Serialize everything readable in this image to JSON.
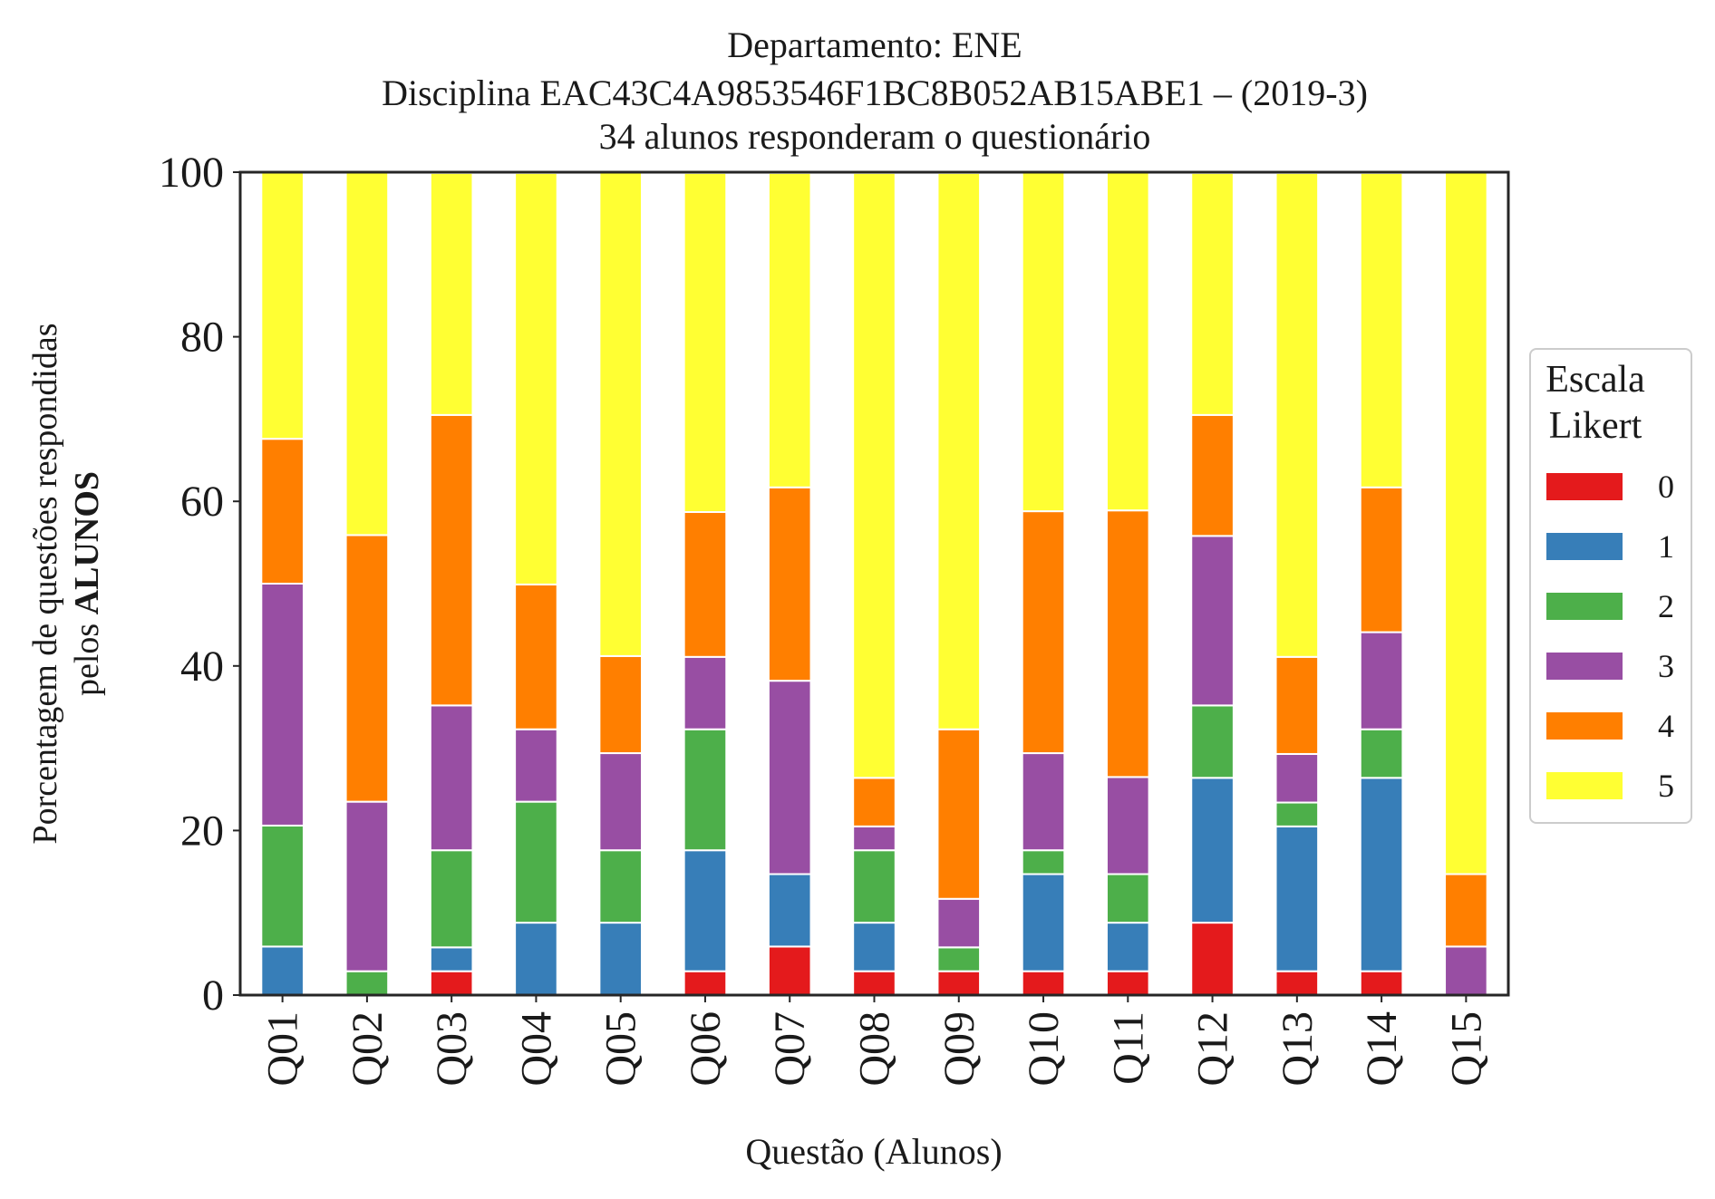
{
  "chart_data": {
    "type": "bar",
    "stacked": true,
    "title_lines": [
      "Departamento: ENE",
      "Disciplina EAC43C4A9853546F1BC8B052AB15ABE1 – (2019-3)",
      "34 alunos responderam o questionário"
    ],
    "xlabel": "Questão (Alunos)",
    "ylabel_line1": "Porcentagem de questões respondidas",
    "ylabel_line2_prefix": "pelos ",
    "ylabel_line2_bold": "ALUNOS",
    "ylim": [
      0,
      100
    ],
    "yticks": [
      "0",
      "20",
      "40",
      "60",
      "80",
      "100"
    ],
    "grid": false,
    "legend_position": "right",
    "legend_title_line1": "Escala",
    "legend_title_line2": "Likert",
    "categories": [
      "Q01",
      "Q02",
      "Q03",
      "Q04",
      "Q05",
      "Q06",
      "Q07",
      "Q08",
      "Q09",
      "Q10",
      "Q11",
      "Q12",
      "Q13",
      "Q14",
      "Q15"
    ],
    "series": [
      {
        "name": "0",
        "color": "#e41a1c",
        "values": [
          0,
          0,
          2.9,
          0,
          0,
          2.9,
          5.9,
          2.9,
          2.9,
          2.9,
          2.9,
          8.8,
          2.9,
          2.9,
          0
        ]
      },
      {
        "name": "1",
        "color": "#377eb8",
        "values": [
          5.9,
          0,
          2.9,
          8.8,
          8.8,
          14.7,
          8.8,
          5.9,
          0,
          11.8,
          5.9,
          17.6,
          17.6,
          23.5,
          0
        ]
      },
      {
        "name": "2",
        "color": "#4daf4a",
        "values": [
          14.7,
          2.9,
          11.8,
          14.7,
          8.8,
          14.7,
          0,
          8.8,
          2.9,
          2.9,
          5.9,
          8.8,
          2.9,
          5.9,
          0
        ]
      },
      {
        "name": "3",
        "color": "#984ea3",
        "values": [
          29.4,
          20.6,
          17.6,
          8.8,
          11.8,
          8.8,
          23.5,
          2.9,
          5.9,
          11.8,
          11.8,
          20.6,
          5.9,
          11.8,
          5.9
        ]
      },
      {
        "name": "4",
        "color": "#ff7f00",
        "values": [
          17.6,
          32.4,
          35.3,
          17.6,
          11.8,
          17.6,
          23.5,
          5.9,
          20.6,
          29.4,
          32.4,
          14.7,
          11.8,
          17.6,
          8.8
        ]
      },
      {
        "name": "5",
        "color": "#ffff33",
        "values": [
          32.4,
          44.1,
          29.4,
          50.0,
          58.8,
          41.2,
          38.2,
          73.5,
          67.6,
          41.2,
          41.2,
          29.4,
          58.8,
          38.2,
          85.3
        ]
      }
    ]
  }
}
